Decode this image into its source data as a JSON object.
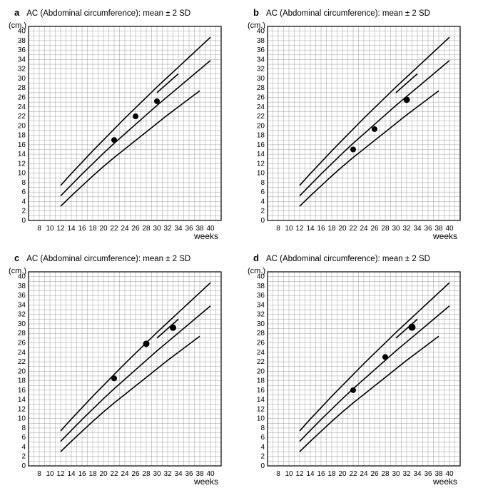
{
  "figure": {
    "background_color": "#ffffff",
    "grid_color": "#888888",
    "line_color": "#000000",
    "point_color": "#000000",
    "title_fontsize": 12,
    "label_fontsize": 10,
    "axis_title_fontsize": 12
  },
  "common": {
    "subtitle": "AC (Abdominal circumference): mean ± 2 SD",
    "x_axis": {
      "label": "weeks",
      "min": 6,
      "max": 42,
      "ticks": [
        8,
        10,
        12,
        14,
        16,
        18,
        20,
        22,
        24,
        26,
        28,
        30,
        32,
        34,
        36,
        38,
        40
      ],
      "minor_step": 1
    },
    "y_axis": {
      "label": "(cm.)",
      "min": 0,
      "max": 41,
      "ticks": [
        0,
        2,
        4,
        6,
        8,
        10,
        12,
        14,
        16,
        18,
        20,
        22,
        24,
        26,
        28,
        30,
        32,
        34,
        36,
        38,
        40
      ],
      "minor_step": 1
    },
    "curves": {
      "lower": [
        {
          "x": 12,
          "y": 3.0
        },
        {
          "x": 14,
          "y": 5.2
        },
        {
          "x": 16,
          "y": 7.3
        },
        {
          "x": 18,
          "y": 9.4
        },
        {
          "x": 20,
          "y": 11.4
        },
        {
          "x": 22,
          "y": 13.3
        },
        {
          "x": 24,
          "y": 15.1
        },
        {
          "x": 26,
          "y": 16.9
        },
        {
          "x": 28,
          "y": 18.7
        },
        {
          "x": 30,
          "y": 20.5
        },
        {
          "x": 32,
          "y": 22.3
        },
        {
          "x": 34,
          "y": 24.0
        },
        {
          "x": 36,
          "y": 25.7
        },
        {
          "x": 38,
          "y": 27.4
        }
      ],
      "mean": [
        {
          "x": 12,
          "y": 5.2
        },
        {
          "x": 14,
          "y": 7.5
        },
        {
          "x": 16,
          "y": 9.8
        },
        {
          "x": 18,
          "y": 12.0
        },
        {
          "x": 20,
          "y": 14.2
        },
        {
          "x": 22,
          "y": 16.3
        },
        {
          "x": 24,
          "y": 18.3
        },
        {
          "x": 26,
          "y": 20.3
        },
        {
          "x": 28,
          "y": 22.3
        },
        {
          "x": 30,
          "y": 24.3
        },
        {
          "x": 32,
          "y": 26.2
        },
        {
          "x": 34,
          "y": 28.1
        },
        {
          "x": 36,
          "y": 30.0
        },
        {
          "x": 38,
          "y": 31.9
        },
        {
          "x": 40,
          "y": 33.8
        }
      ],
      "upper": [
        {
          "x": 12,
          "y": 7.4
        },
        {
          "x": 14,
          "y": 9.9
        },
        {
          "x": 16,
          "y": 12.3
        },
        {
          "x": 18,
          "y": 14.7
        },
        {
          "x": 20,
          "y": 17.0
        },
        {
          "x": 22,
          "y": 19.3
        },
        {
          "x": 24,
          "y": 21.6
        },
        {
          "x": 26,
          "y": 23.8
        },
        {
          "x": 28,
          "y": 26.0
        },
        {
          "x": 30,
          "y": 28.2
        },
        {
          "x": 32,
          "y": 30.3
        },
        {
          "x": 34,
          "y": 32.4
        },
        {
          "x": 36,
          "y": 34.5
        },
        {
          "x": 38,
          "y": 36.6
        },
        {
          "x": 40,
          "y": 38.7
        }
      ],
      "tick_segment": [
        {
          "x": 30,
          "y": 27.0
        },
        {
          "x": 34,
          "y": 31.0
        }
      ]
    }
  },
  "panels": {
    "a": {
      "letter": "a",
      "points": [
        {
          "x": 22,
          "y": 17.0,
          "r": 4.0
        },
        {
          "x": 26,
          "y": 22.0,
          "r": 4.0
        },
        {
          "x": 30,
          "y": 25.2,
          "r": 4.0
        }
      ]
    },
    "b": {
      "letter": "b",
      "points": [
        {
          "x": 22,
          "y": 15.0,
          "r": 4.0
        },
        {
          "x": 26,
          "y": 19.3,
          "r": 4.0
        },
        {
          "x": 32,
          "y": 25.5,
          "r": 4.5
        }
      ]
    },
    "c": {
      "letter": "c",
      "points": [
        {
          "x": 22,
          "y": 18.5,
          "r": 4.0
        },
        {
          "x": 28,
          "y": 25.8,
          "r": 4.5
        },
        {
          "x": 33,
          "y": 29.2,
          "r": 4.5
        }
      ]
    },
    "d": {
      "letter": "d",
      "points": [
        {
          "x": 22,
          "y": 16.0,
          "r": 4.0
        },
        {
          "x": 28,
          "y": 23.0,
          "r": 4.0
        },
        {
          "x": 33,
          "y": 29.3,
          "r": 5.0
        }
      ]
    }
  }
}
